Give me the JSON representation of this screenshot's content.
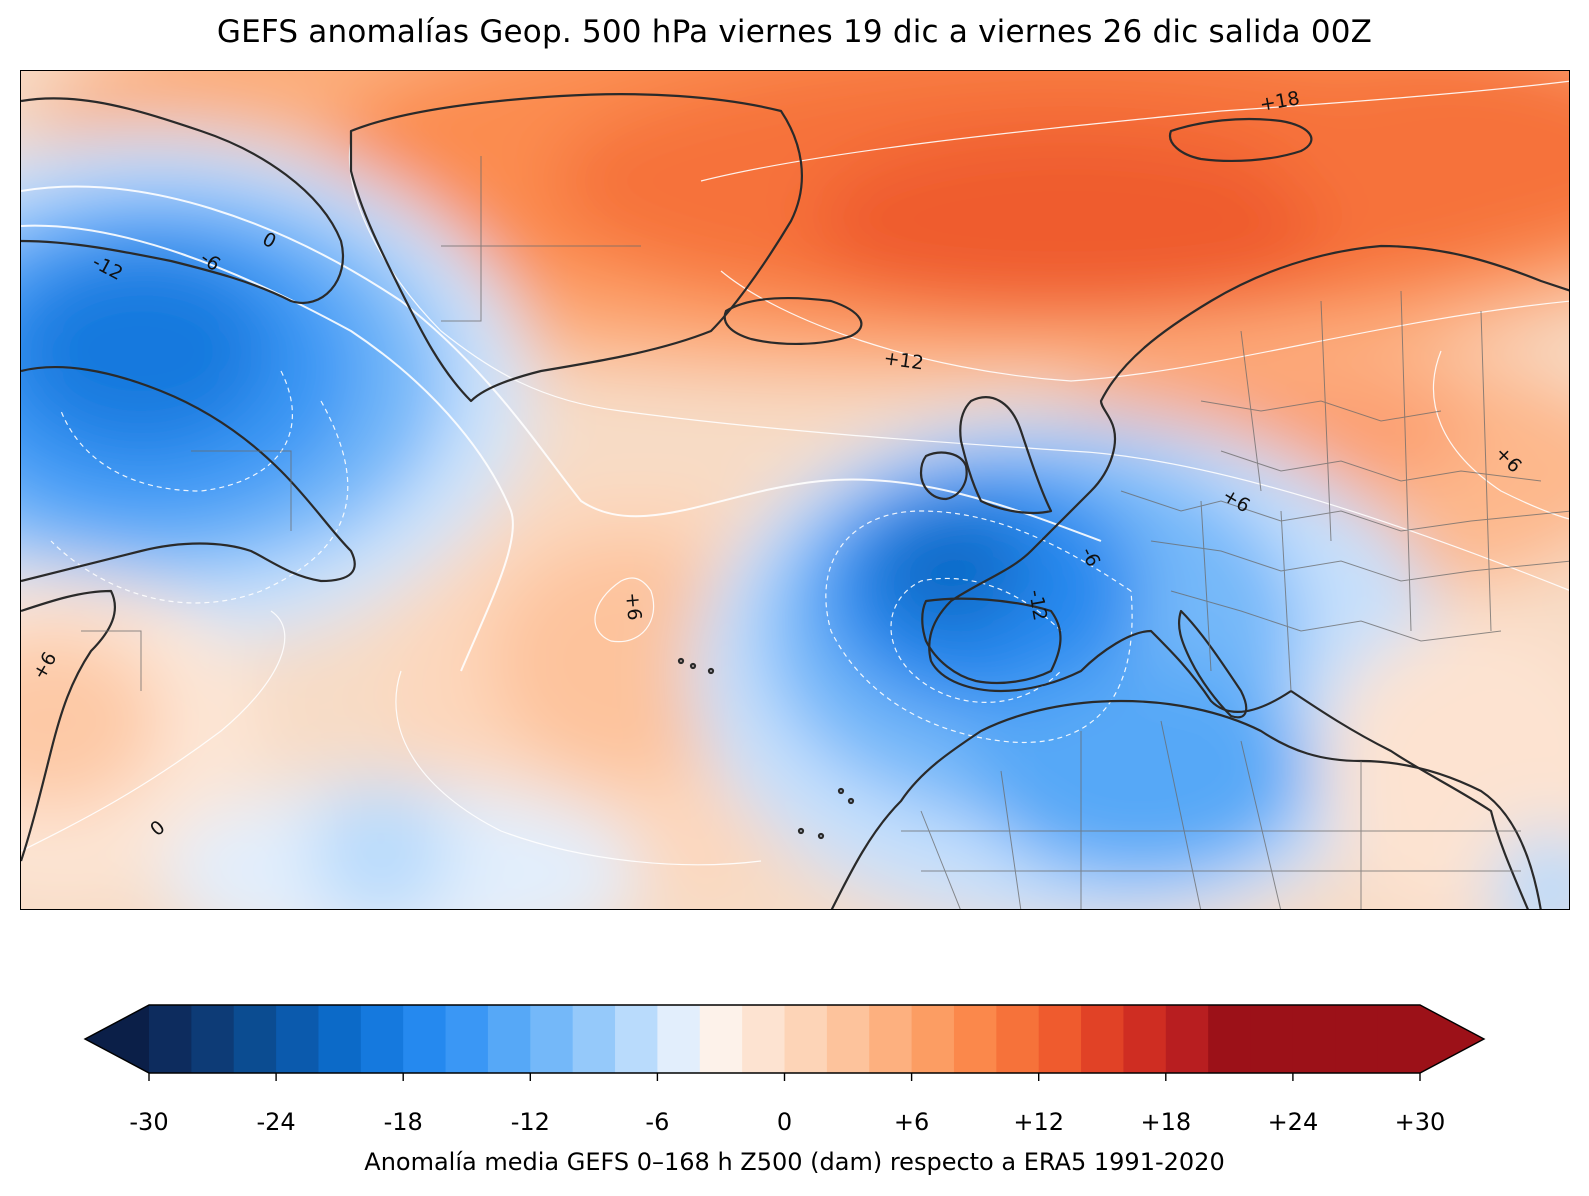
{
  "title": "GEFS anomalías Geop. 500 hPa viernes 19 dic a viernes 26 dic salida 00Z",
  "colorbar": {
    "label": "Anomalía media GEFS 0–168 h Z500 (dam) respecto a ERA5 1991-2020",
    "min": -30,
    "max": 30,
    "step": 2,
    "extend": "both",
    "ticks": [
      "-30",
      "-24",
      "-18",
      "-12",
      "-6",
      "0",
      "+6",
      "+12",
      "+18",
      "+24",
      "+30"
    ],
    "colors": [
      "#0b1f48",
      "#0d2c5e",
      "#0d3b76",
      "#0b4c91",
      "#0b5aad",
      "#0c6ac8",
      "#1579de",
      "#2589ef",
      "#3a97f5",
      "#56a8f7",
      "#74b8f9",
      "#95c9fa",
      "#b9dbfc",
      "#e2eefc",
      "#fdf2ea",
      "#fde3d1",
      "#fdd4b7",
      "#fdc39c",
      "#fdb07f",
      "#fc9d63",
      "#fb884b",
      "#f6723a",
      "#ef5b2e",
      "#e14226",
      "#cf2d22",
      "#b81e20",
      "#9c1118"
    ]
  },
  "contour_labels": [
    "-12",
    "-6",
    "0",
    "-6",
    "-12",
    "+6",
    "+12",
    "+18",
    "+6",
    "+6",
    "+6",
    "0"
  ],
  "map": {
    "region": "North Atlantic and Europe",
    "features": [
      "coastlines",
      "country borders",
      "regional borders",
      "filled anomaly contours",
      "contour lines"
    ]
  }
}
